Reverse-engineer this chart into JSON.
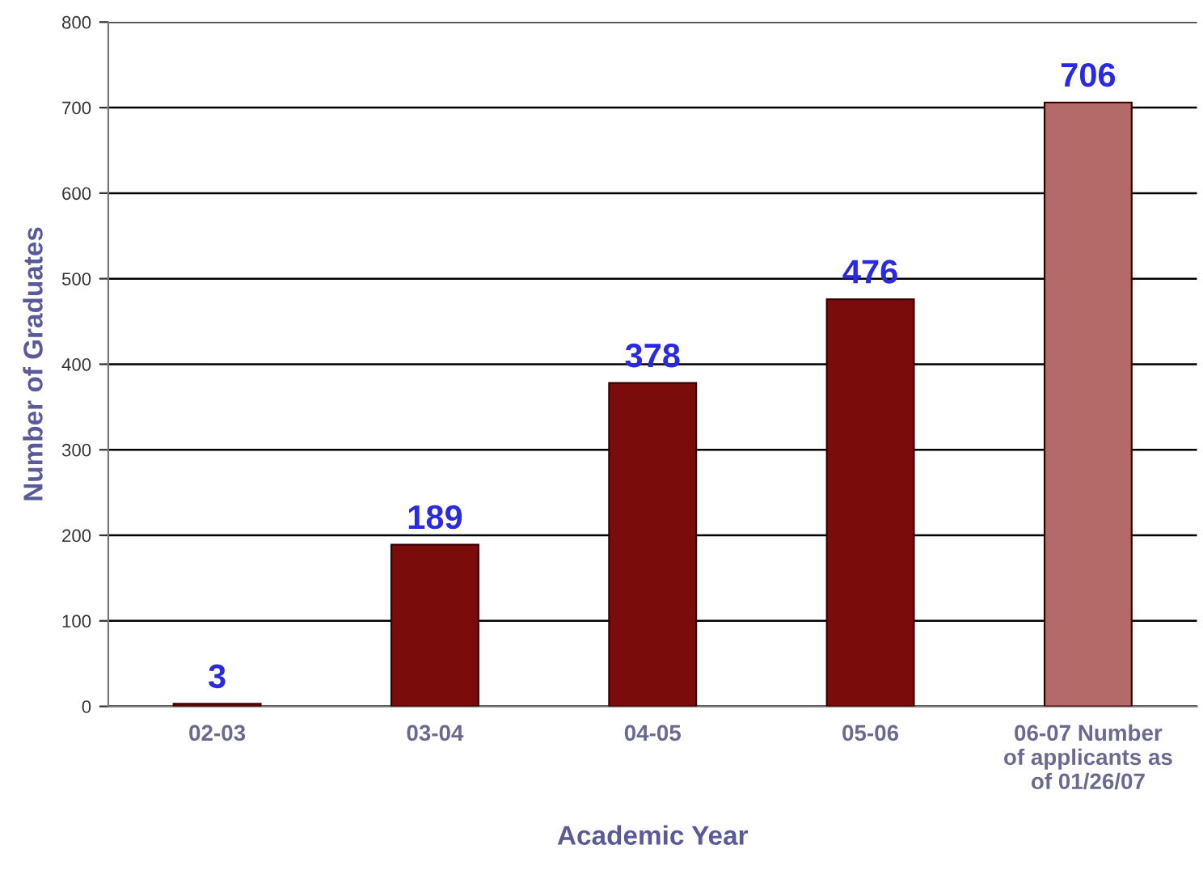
{
  "chart_data": {
    "type": "bar",
    "xlabel": "Academic Year",
    "ylabel": "Number of Graduates",
    "categories": [
      "02-03",
      "03-04",
      "04-05",
      "05-06",
      "06-07 Number\nof applicants as\nof 01/26/07"
    ],
    "values": [
      3,
      189,
      378,
      476,
      706
    ],
    "colors": [
      "#7a0c0c",
      "#7a0c0c",
      "#7a0c0c",
      "#7a0c0c",
      "#b56a6a"
    ],
    "ylim": [
      0,
      800
    ],
    "yticks": [
      0,
      100,
      200,
      300,
      400,
      500,
      600,
      700,
      800
    ],
    "grid": "y",
    "data_labels": true,
    "legend": false
  }
}
